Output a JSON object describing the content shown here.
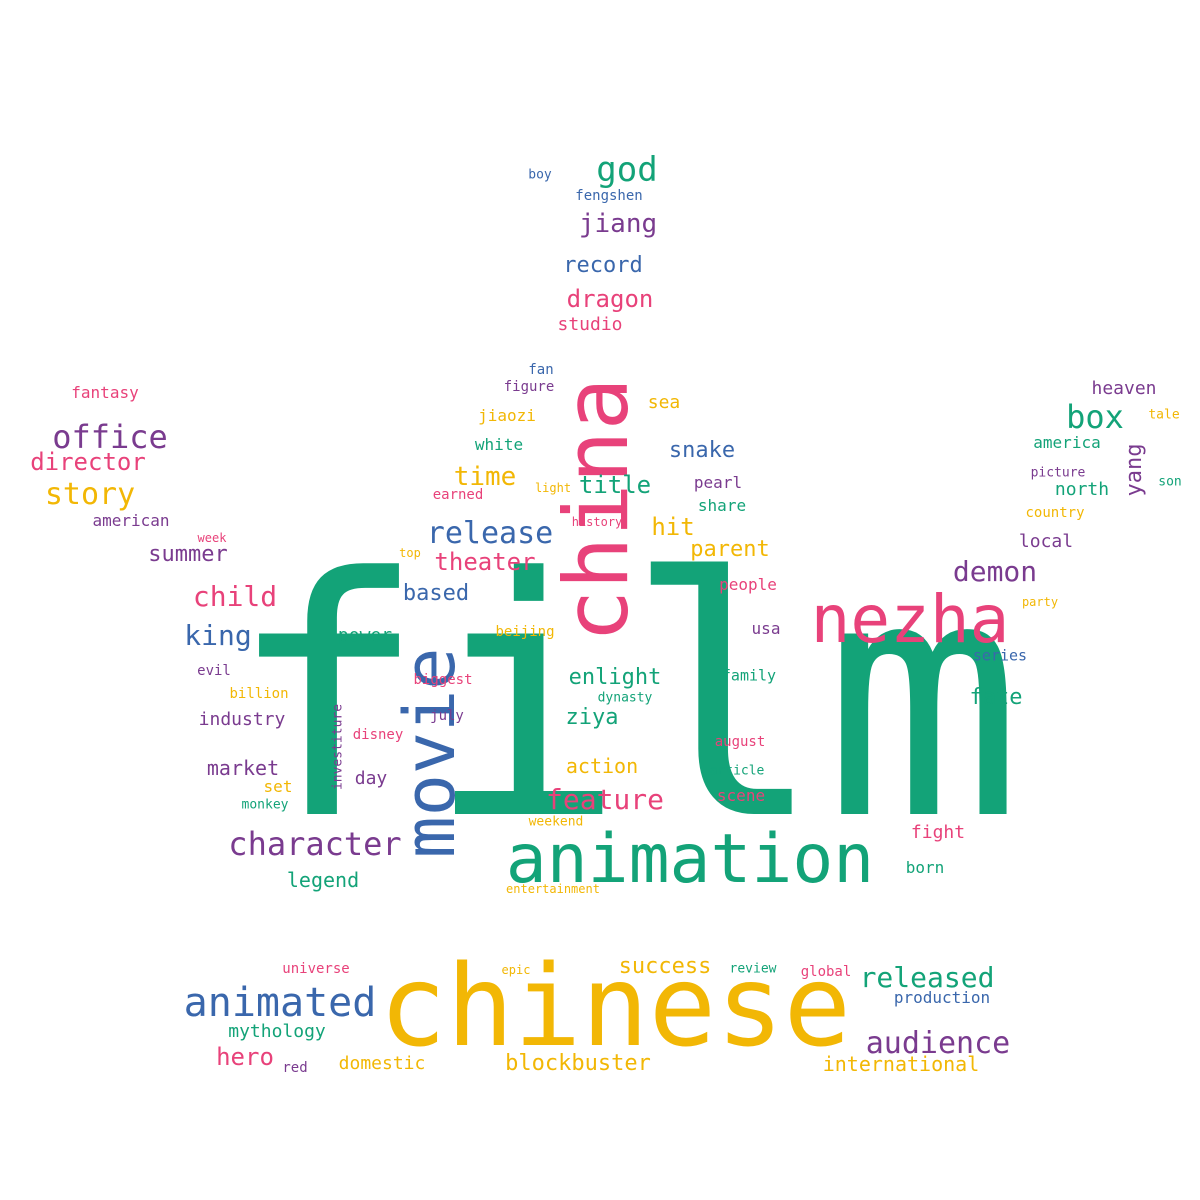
{
  "palette": {
    "green": "#13a378",
    "blue": "#3a67ac",
    "pink": "#e8427a",
    "yellow": "#f2b705",
    "purple": "#7a3b8f"
  },
  "words": [
    {
      "text": "film",
      "color": "green"
    },
    {
      "text": "chinese",
      "color": "yellow"
    },
    {
      "text": "china",
      "color": "pink"
    },
    {
      "text": "movie",
      "color": "blue"
    },
    {
      "text": "animation",
      "color": "green"
    },
    {
      "text": "nezha",
      "color": "pink"
    },
    {
      "text": "animated",
      "color": "blue"
    },
    {
      "text": "character",
      "color": "purple"
    },
    {
      "text": "office",
      "color": "purple"
    },
    {
      "text": "release",
      "color": "blue"
    },
    {
      "text": "box",
      "color": "green"
    },
    {
      "text": "god",
      "color": "green"
    },
    {
      "text": "story",
      "color": "yellow"
    },
    {
      "text": "feature",
      "color": "pink"
    },
    {
      "text": "audience",
      "color": "purple"
    },
    {
      "text": "released",
      "color": "green"
    },
    {
      "text": "demon",
      "color": "purple"
    },
    {
      "text": "king",
      "color": "blue"
    },
    {
      "text": "child",
      "color": "pink"
    },
    {
      "text": "director",
      "color": "pink"
    },
    {
      "text": "jiang",
      "color": "purple"
    },
    {
      "text": "dragon",
      "color": "pink"
    },
    {
      "text": "time",
      "color": "yellow"
    },
    {
      "text": "hero",
      "color": "pink"
    },
    {
      "text": "theater",
      "color": "pink"
    },
    {
      "text": "title",
      "color": "green"
    },
    {
      "text": "hit",
      "color": "yellow"
    },
    {
      "text": "success",
      "color": "yellow"
    },
    {
      "text": "blockbuster",
      "color": "yellow"
    },
    {
      "text": "enlight",
      "color": "green"
    },
    {
      "text": "ziya",
      "color": "green"
    },
    {
      "text": "parent",
      "color": "yellow"
    },
    {
      "text": "record",
      "color": "blue"
    },
    {
      "text": "snake",
      "color": "blue"
    },
    {
      "text": "yang",
      "color": "purple"
    },
    {
      "text": "fate",
      "color": "green"
    },
    {
      "text": "summer",
      "color": "purple"
    },
    {
      "text": "based",
      "color": "blue"
    },
    {
      "text": "legend",
      "color": "green"
    },
    {
      "text": "industry",
      "color": "purple"
    },
    {
      "text": "market",
      "color": "purple"
    },
    {
      "text": "action",
      "color": "yellow"
    },
    {
      "text": "studio",
      "color": "pink"
    },
    {
      "text": "sea",
      "color": "yellow"
    },
    {
      "text": "mythology",
      "color": "green"
    },
    {
      "text": "domestic",
      "color": "yellow"
    },
    {
      "text": "international",
      "color": "yellow"
    },
    {
      "text": "production",
      "color": "blue"
    },
    {
      "text": "power",
      "color": "green"
    },
    {
      "text": "local",
      "color": "purple"
    },
    {
      "text": "north",
      "color": "green"
    },
    {
      "text": "fight",
      "color": "pink"
    },
    {
      "text": "heaven",
      "color": "purple"
    },
    {
      "text": "america",
      "color": "green"
    },
    {
      "text": "american",
      "color": "purple"
    },
    {
      "text": "fantasy",
      "color": "pink"
    },
    {
      "text": "white",
      "color": "green"
    },
    {
      "text": "pearl",
      "color": "purple"
    },
    {
      "text": "share",
      "color": "green"
    },
    {
      "text": "people",
      "color": "pink"
    },
    {
      "text": "day",
      "color": "purple"
    },
    {
      "text": "scene",
      "color": "pink"
    },
    {
      "text": "jiaozi",
      "color": "yellow"
    },
    {
      "text": "usa",
      "color": "purple"
    },
    {
      "text": "series",
      "color": "blue"
    },
    {
      "text": "family",
      "color": "green"
    },
    {
      "text": "born",
      "color": "green"
    },
    {
      "text": "fengshen",
      "color": "blue"
    },
    {
      "text": "figure",
      "color": "purple"
    },
    {
      "text": "fan",
      "color": "blue"
    },
    {
      "text": "boy",
      "color": "blue"
    },
    {
      "text": "country",
      "color": "yellow"
    },
    {
      "text": "investiture",
      "color": "purple"
    },
    {
      "text": "beijing",
      "color": "yellow"
    },
    {
      "text": "biggest",
      "color": "pink"
    },
    {
      "text": "evil",
      "color": "purple"
    },
    {
      "text": "billion",
      "color": "yellow"
    },
    {
      "text": "july",
      "color": "purple"
    },
    {
      "text": "disney",
      "color": "pink"
    },
    {
      "text": "august",
      "color": "pink"
    },
    {
      "text": "article",
      "color": "green"
    },
    {
      "text": "set",
      "color": "yellow"
    },
    {
      "text": "monkey",
      "color": "green"
    },
    {
      "text": "weekend",
      "color": "yellow"
    },
    {
      "text": "entertainment",
      "color": "yellow"
    },
    {
      "text": "universe",
      "color": "pink"
    },
    {
      "text": "epic",
      "color": "yellow"
    },
    {
      "text": "review",
      "color": "green"
    },
    {
      "text": "global",
      "color": "pink"
    },
    {
      "text": "red",
      "color": "purple"
    },
    {
      "text": "dynasty",
      "color": "green"
    },
    {
      "text": "earned",
      "color": "pink"
    },
    {
      "text": "light",
      "color": "yellow"
    },
    {
      "text": "history",
      "color": "pink"
    },
    {
      "text": "top",
      "color": "yellow"
    },
    {
      "text": "week",
      "color": "pink"
    },
    {
      "text": "picture",
      "color": "purple"
    },
    {
      "text": "party",
      "color": "yellow"
    },
    {
      "text": "tale",
      "color": "yellow"
    },
    {
      "text": "son",
      "color": "green"
    }
  ]
}
